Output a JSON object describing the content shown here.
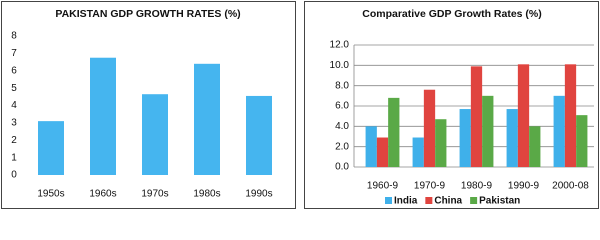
{
  "chart_data": [
    {
      "type": "bar",
      "title": "PAKISTAN GDP GROWTH RATES (%)",
      "categories": [
        "1950s",
        "1960s",
        "1970s",
        "1980s",
        "1990s"
      ],
      "values": [
        3.1,
        6.75,
        4.65,
        6.4,
        4.55
      ],
      "color": "#45b5ef",
      "ylim": [
        0,
        8
      ],
      "yticks": [
        0,
        1,
        2,
        3,
        4,
        5,
        6,
        7,
        8
      ],
      "grid": false
    },
    {
      "type": "bar",
      "title": "Comparative GDP Growth Rates (%)",
      "categories": [
        "1960-9",
        "1970-9",
        "1980-9",
        "1990-9",
        "2000-08"
      ],
      "series": [
        {
          "name": "India",
          "color": "#3fb0ea",
          "values": [
            4.0,
            2.9,
            5.7,
            5.7,
            7.0
          ]
        },
        {
          "name": "China",
          "color": "#e0443f",
          "values": [
            2.9,
            7.6,
            9.9,
            10.1,
            10.1
          ]
        },
        {
          "name": "Pakistan",
          "color": "#5aa947",
          "values": [
            6.8,
            4.7,
            7.0,
            4.0,
            5.1
          ]
        }
      ],
      "ylim": [
        0,
        12
      ],
      "yticks": [
        {
          "value": 0,
          "label": "0.0"
        },
        {
          "value": 2,
          "label": "2.0"
        },
        {
          "value": 4,
          "label": "4.0"
        },
        {
          "value": 6,
          "label": "6.0"
        },
        {
          "value": 8,
          "label": "8.0"
        },
        {
          "value": 10,
          "label": "10.0"
        },
        {
          "value": 12,
          "label": "12.0"
        }
      ],
      "grid": true,
      "legend": "bottom"
    }
  ]
}
